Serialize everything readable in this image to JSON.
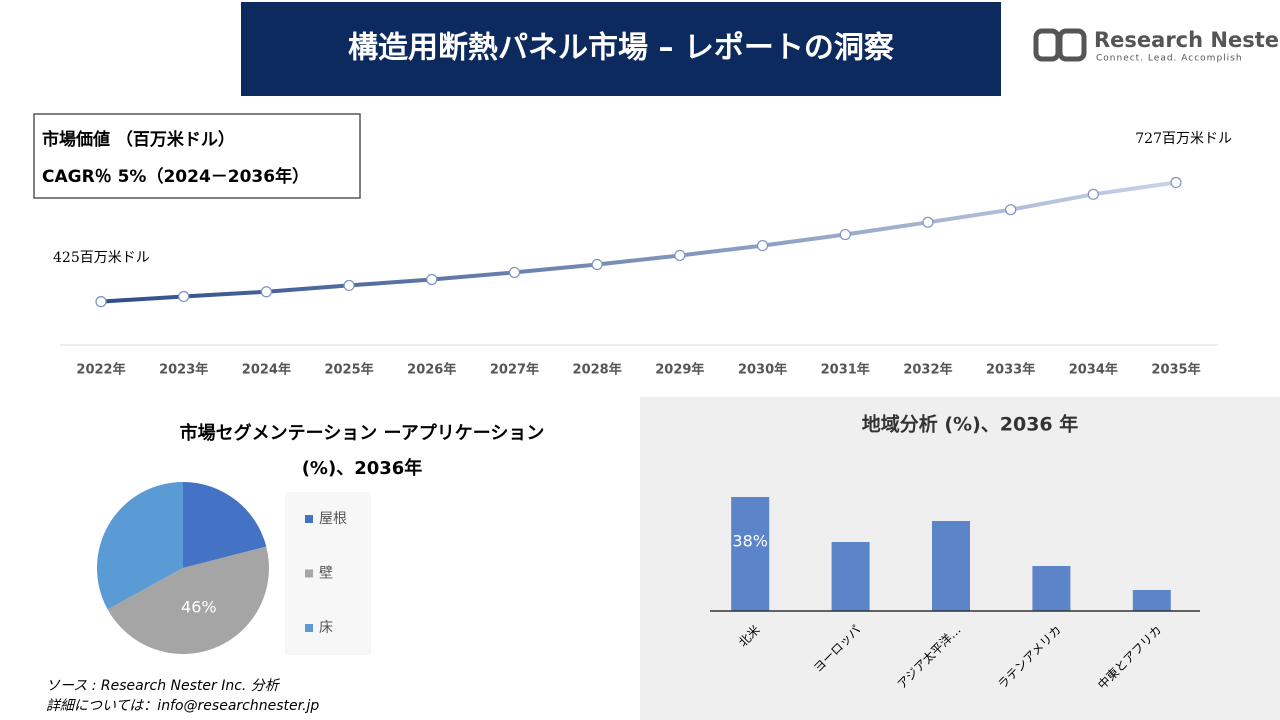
{
  "header": {
    "title": "構造用断熱パネル市場 – レポートの洞察",
    "logo_name": "Research Nester",
    "logo_tagline": "Connect. Lead. Accomplish"
  },
  "info_box": [
    "市場価値 （百万米ドル）",
    "CAGR％ 5%（2024－2036年）"
  ],
  "chart_data": [
    {
      "type": "line",
      "categories": [
        "2022年",
        "2023年",
        "2024年",
        "2025年",
        "2026年",
        "2027年",
        "2028年",
        "2029年",
        "2030年",
        "2031年",
        "2032年",
        "2033年",
        "2034年",
        "2035年"
      ],
      "values": [
        425,
        438,
        450,
        466,
        481,
        499,
        519,
        542,
        567,
        595,
        626,
        658,
        697,
        727
      ],
      "value_labels": [
        "425百万米ドル",
        null,
        null,
        null,
        null,
        null,
        null,
        null,
        null,
        null,
        null,
        null,
        null,
        "727百万米ドル"
      ],
      "ylim": [
        315,
        860
      ],
      "color": "#2e4d8a",
      "color_end": "#c9d3e8"
    },
    {
      "type": "pie",
      "title": "市場セグメンテーション ーアプリケーション",
      "subtitle": "(%)、2036年",
      "categories": [
        "屋根",
        "壁",
        "床"
      ],
      "values": [
        21,
        46,
        33
      ],
      "value_labels": [
        null,
        "46%",
        null
      ],
      "colors": [
        "#4472c4",
        "#a5a5a5",
        "#5b9bd5"
      ]
    },
    {
      "type": "bar",
      "title": "地域分析 (%)、2036 年",
      "categories": [
        "北米",
        "ヨーロッパ",
        "アジア太平洋…",
        "ラテンアメリカ",
        "中東とアフリカ"
      ],
      "values": [
        38,
        23,
        30,
        15,
        7
      ],
      "value_labels": [
        "38%",
        null,
        null,
        null,
        null
      ],
      "ylim": [
        0,
        42
      ],
      "color": "#5b84c9"
    }
  ],
  "source": [
    "ソース : Research Nester Inc. 分析",
    "詳細については：info@researchnester.jp"
  ]
}
